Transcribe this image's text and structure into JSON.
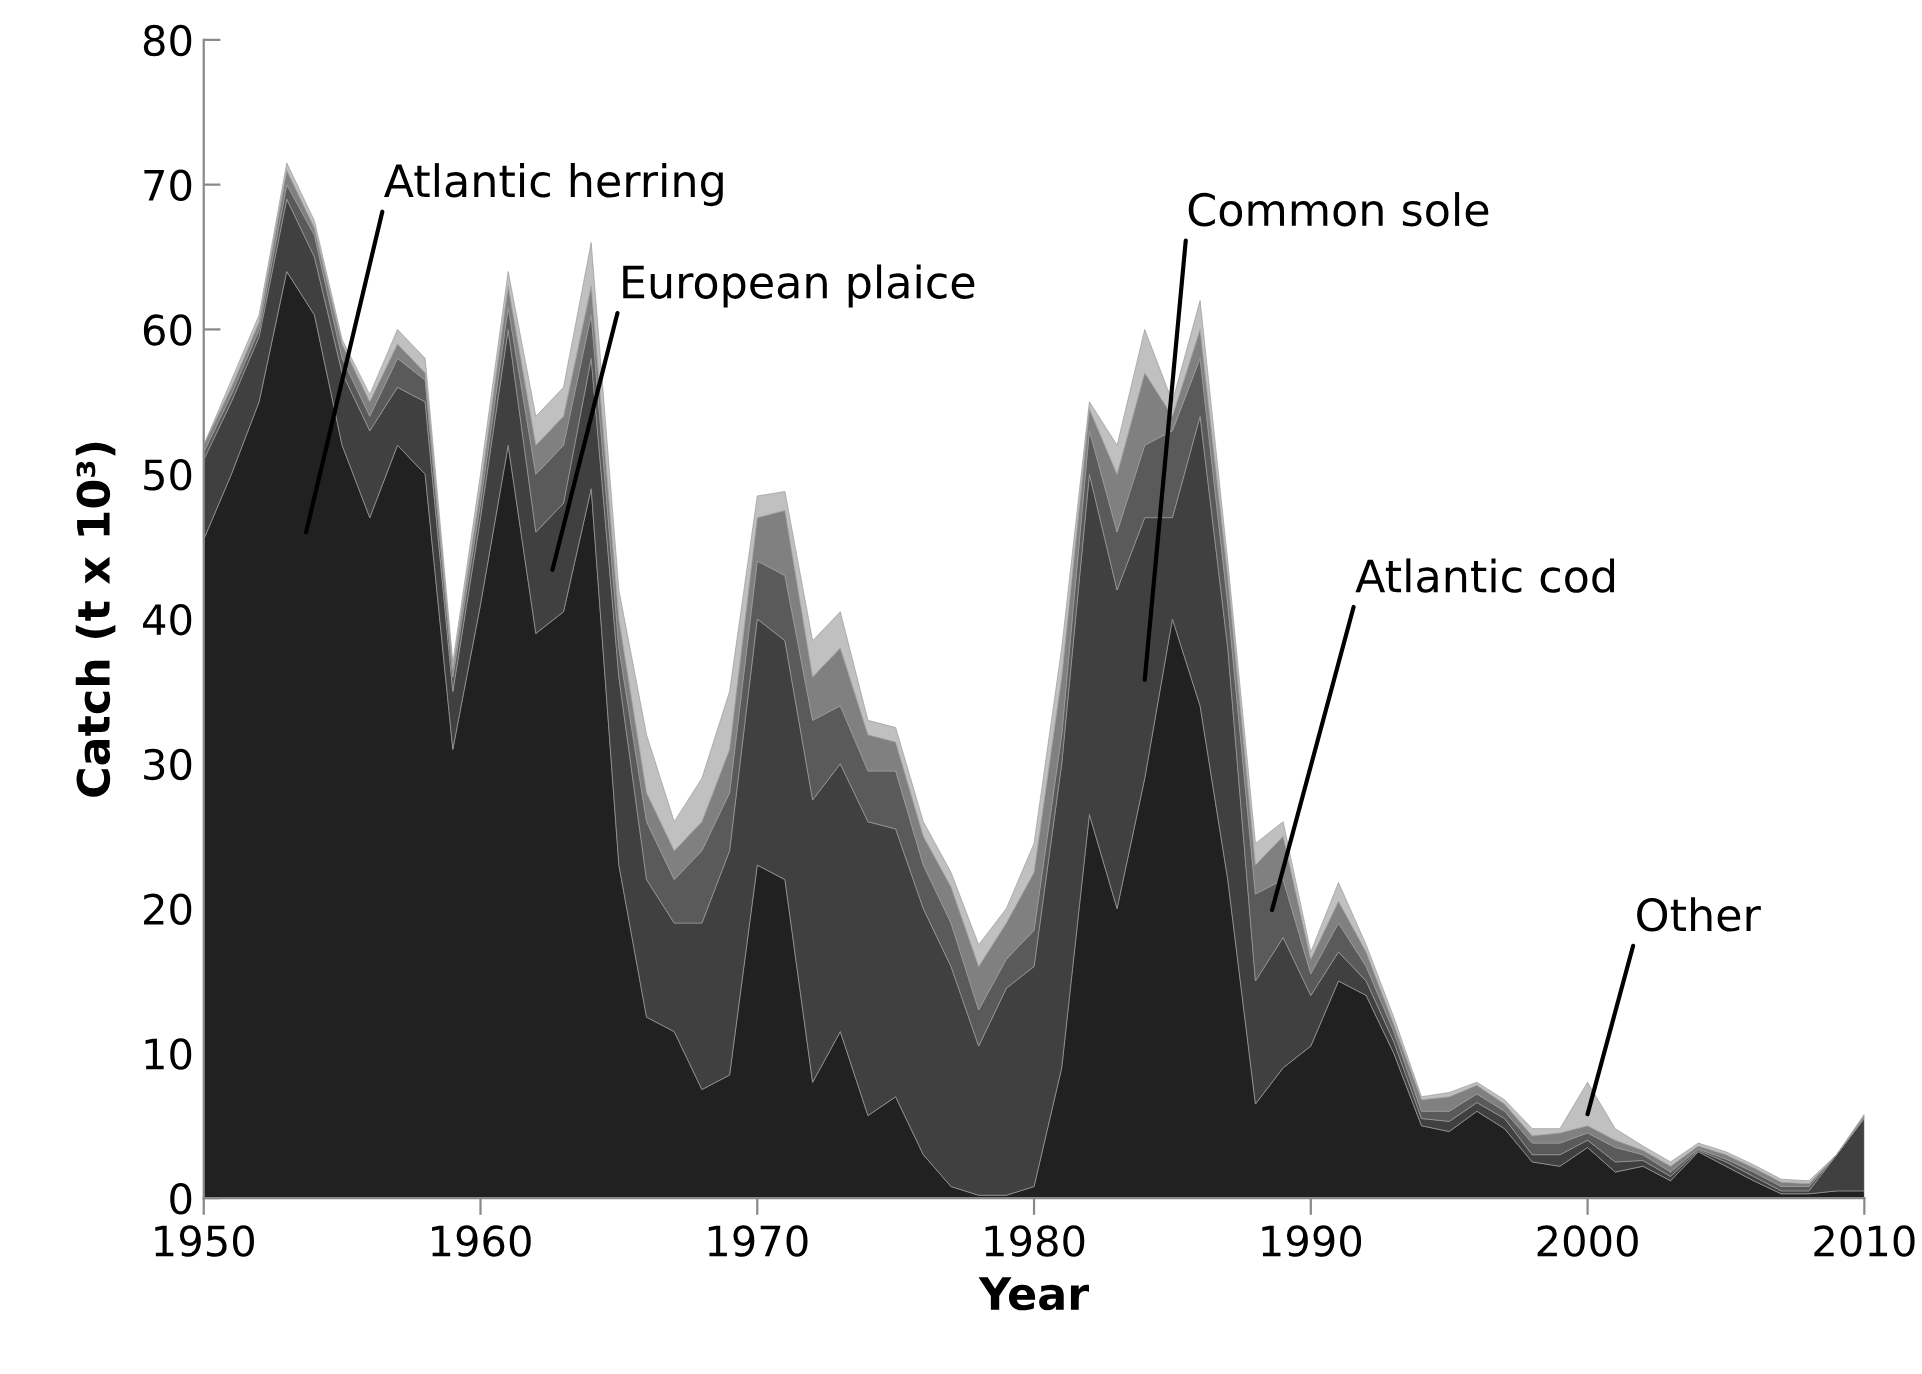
{
  "chart_data": {
    "type": "area",
    "stacked": true,
    "xlabel": "Year",
    "ylabel": "Catch (t x 10³)",
    "x": [
      1950,
      1951,
      1952,
      1953,
      1954,
      1955,
      1956,
      1957,
      1958,
      1959,
      1960,
      1961,
      1962,
      1963,
      1964,
      1965,
      1966,
      1967,
      1968,
      1969,
      1970,
      1971,
      1972,
      1973,
      1974,
      1975,
      1976,
      1977,
      1978,
      1979,
      1980,
      1981,
      1982,
      1983,
      1984,
      1985,
      1986,
      1987,
      1988,
      1989,
      1990,
      1991,
      1992,
      1993,
      1994,
      1995,
      1996,
      1997,
      1998,
      1999,
      2000,
      2001,
      2002,
      2003,
      2004,
      2005,
      2006,
      2007,
      2008,
      2009,
      2010
    ],
    "xlim": [
      1950,
      2010
    ],
    "xticks": [
      1950,
      1960,
      1970,
      1980,
      1990,
      2000,
      2010
    ],
    "ylim": [
      0,
      80
    ],
    "yticks": [
      0,
      10,
      20,
      30,
      40,
      50,
      60,
      70,
      80
    ],
    "grid": false,
    "legend": false,
    "series": [
      {
        "color": "#212121",
        "values": [
          45.5,
          50,
          55,
          64,
          61,
          52,
          47,
          52,
          50,
          31,
          41,
          52,
          39,
          40.5,
          49,
          23,
          12.5,
          11.5,
          7.5,
          8.5,
          23,
          22,
          8,
          11.5,
          5.7,
          7,
          3,
          0.8,
          0.2,
          0.2,
          0.8,
          9,
          26.5,
          20,
          29,
          40,
          34,
          22,
          6.5,
          9,
          10.5,
          15,
          14,
          10,
          5,
          4.6,
          6,
          4.8,
          2.5,
          2.2,
          3.5,
          1.8,
          2.2,
          1.2,
          3.2,
          2.2,
          1.2,
          0.3,
          0.3,
          0.5,
          0.5
        ]
      },
      {
        "color": "#404040",
        "values": [
          5.5,
          5,
          4.5,
          5,
          4,
          5,
          6,
          4,
          5,
          4,
          6,
          8,
          7,
          7.5,
          9,
          13,
          9.5,
          7.5,
          11.5,
          15.5,
          17,
          16.5,
          19.5,
          18.5,
          20.3,
          18.5,
          17,
          15.2,
          10.3,
          14.3,
          15.2,
          21,
          23.5,
          22,
          18,
          7,
          20,
          16,
          8.5,
          9,
          3.5,
          2,
          1,
          0.8,
          0.5,
          0.7,
          0.6,
          0.7,
          0.5,
          0.8,
          0.5,
          0.7,
          0.4,
          0.3,
          0.1,
          0.3,
          0.3,
          0.2,
          0.2,
          2.5,
          5
        ]
      },
      {
        "color": "#5a5a5a",
        "values": [
          0.5,
          0.5,
          0.5,
          1,
          1.5,
          1,
          1,
          2,
          1.5,
          1,
          1,
          1.5,
          4,
          4,
          3,
          2,
          4,
          3,
          5,
          4,
          4,
          4.5,
          5.5,
          4,
          3.5,
          4,
          3,
          3,
          2.5,
          2,
          2.5,
          2,
          3,
          4,
          5,
          6,
          4,
          3,
          6,
          4,
          1.5,
          2,
          1,
          0.7,
          0.5,
          0.7,
          0.6,
          0.5,
          0.8,
          0.8,
          0.5,
          1,
          0.4,
          0.3,
          0.1,
          0.2,
          0.3,
          0.3,
          0.3,
          0,
          0.1
        ]
      },
      {
        "color": "#808080",
        "values": [
          0.5,
          0.5,
          0.5,
          1,
          0.5,
          1,
          1,
          1,
          0.5,
          0.5,
          1,
          1.5,
          2,
          2,
          2,
          2,
          2,
          2,
          2,
          3,
          3,
          4.5,
          3,
          4,
          2.5,
          2,
          2,
          2.5,
          3,
          2.5,
          4,
          4,
          1.5,
          4,
          5,
          1,
          2,
          2,
          2,
          3,
          1,
          1.5,
          1,
          0.5,
          0.8,
          1,
          0.6,
          0.5,
          0.5,
          0.7,
          0.5,
          0.5,
          0.3,
          0.4,
          0.2,
          0.3,
          0.3,
          0.3,
          0.2,
          0,
          0.1
        ]
      },
      {
        "color": "#c0c0c0",
        "values": [
          0,
          0.5,
          0.5,
          0.5,
          0.5,
          0.3,
          0.5,
          1,
          1,
          0.5,
          1,
          1,
          2,
          2,
          3,
          2,
          4,
          2,
          3,
          4,
          1.5,
          1.3,
          2.5,
          2.5,
          1,
          1,
          1,
          1,
          1.5,
          1,
          2,
          2,
          0.5,
          2,
          3,
          1,
          2,
          1,
          1.5,
          1,
          0.5,
          1.3,
          0.5,
          0.5,
          0.2,
          0.3,
          0.2,
          0.3,
          0.5,
          0.3,
          3,
          0.8,
          0.3,
          0.3,
          0.2,
          0.2,
          0.2,
          0.2,
          0.2,
          0,
          0.1
        ]
      }
    ],
    "annotations": [
      "Atlantic herring",
      "European plaice",
      "Common sole",
      "Atlantic cod",
      "Other"
    ]
  }
}
